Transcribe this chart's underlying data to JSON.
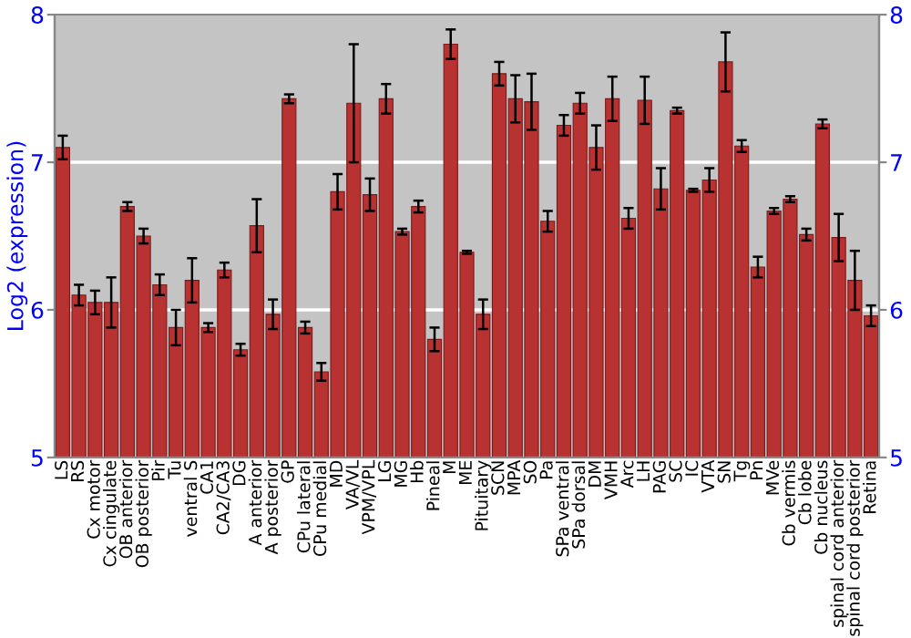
{
  "chart_data": {
    "type": "bar",
    "ylabel": "Log2 (expression)",
    "categories": [
      "LS",
      "RS",
      "Cx motor",
      "Cx cingulate",
      "OB anterior",
      "OB posterior",
      "Pir",
      "Tu",
      "ventral S",
      "CA1",
      "CA2/CA3",
      "DG",
      "A anterior",
      "A posterior",
      "GP",
      "CPu lateral",
      "CPu medial",
      "MD",
      "VA/VL",
      "VPM/VPL",
      "LG",
      "MG",
      "Hb",
      "Pineal",
      "M",
      "ME",
      "Pituitary",
      "SCN",
      "MPA",
      "SO",
      "Pa",
      "SPa ventral",
      "SPa dorsal",
      "DM",
      "VMH",
      "Arc",
      "LH",
      "PAG",
      "SC",
      "IC",
      "VTA",
      "SN",
      "Tg",
      "Pn",
      "MVe",
      "Cb vermis",
      "Cb lobe",
      "Cb nucleus",
      "spinal cord anterior",
      "spinal cord posterior",
      "Retina"
    ],
    "values": [
      7.1,
      6.1,
      6.05,
      6.05,
      6.7,
      6.5,
      6.17,
      5.88,
      6.2,
      5.88,
      6.27,
      5.73,
      6.57,
      5.97,
      7.43,
      5.88,
      5.58,
      6.8,
      7.4,
      6.78,
      7.43,
      6.53,
      6.7,
      5.8,
      7.8,
      6.39,
      5.97,
      7.6,
      7.43,
      7.41,
      6.6,
      7.25,
      7.4,
      7.1,
      7.43,
      6.62,
      7.42,
      6.82,
      7.35,
      6.81,
      6.88,
      7.68,
      7.11,
      6.29,
      6.67,
      6.75,
      6.51,
      7.26,
      6.49,
      6.2,
      5.96
    ],
    "errors": [
      0.08,
      0.07,
      0.08,
      0.17,
      0.03,
      0.05,
      0.07,
      0.12,
      0.15,
      0.03,
      0.05,
      0.04,
      0.18,
      0.1,
      0.03,
      0.04,
      0.06,
      0.12,
      0.4,
      0.11,
      0.1,
      0.02,
      0.04,
      0.08,
      0.1,
      0.01,
      0.1,
      0.08,
      0.16,
      0.19,
      0.07,
      0.07,
      0.07,
      0.15,
      0.15,
      0.07,
      0.16,
      0.14,
      0.02,
      0.01,
      0.08,
      0.2,
      0.04,
      0.07,
      0.02,
      0.02,
      0.04,
      0.03,
      0.16,
      0.2,
      0.07
    ],
    "color": "#b83232",
    "ylim": [
      5,
      8
    ],
    "yticks": [
      5,
      6,
      7,
      8
    ],
    "y2lim": [
      5,
      8
    ],
    "y2ticks": [
      5,
      6,
      7,
      8
    ],
    "grid": "y"
  }
}
